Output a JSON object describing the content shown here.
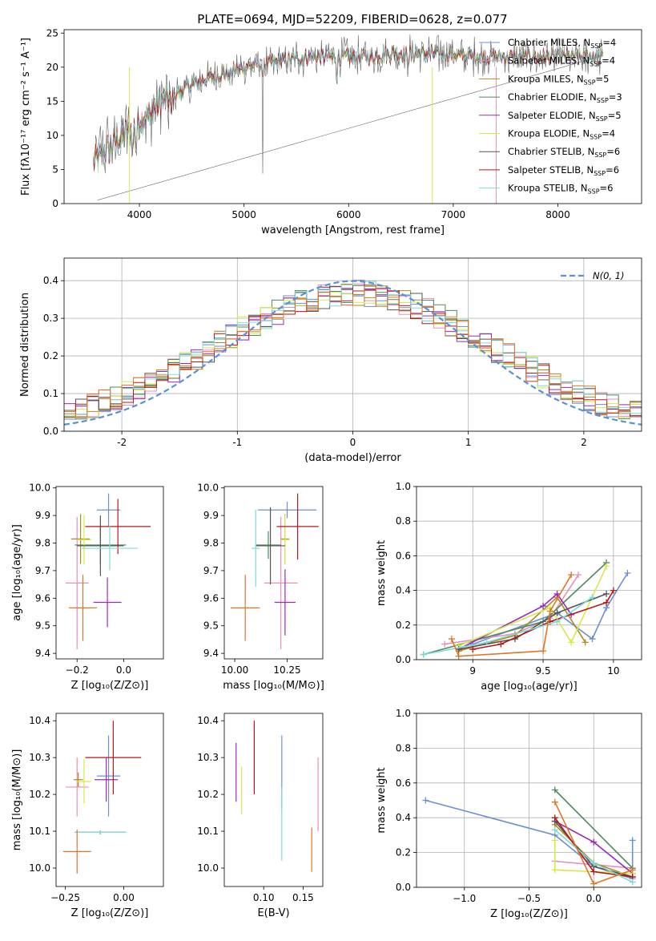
{
  "title": "PLATE=0694, MJD=52209, FIBERID=0628, z=0.077",
  "colors": {
    "Chabrier MILES": "#6b8fd6",
    "Salpeter MILES": "#e68fbf",
    "Kroupa MILES": "#b08a1e",
    "Chabrier ELODIE": "#4d8a5c",
    "Salpeter ELODIE": "#9b2ab8",
    "Kroupa ELODIE": "#d6e84a",
    "Chabrier STELIB": "#555555",
    "Salpeter STELIB": "#b51818",
    "Kroupa STELIB": "#7fd8d8",
    "orange": "#e0752a",
    "normal": "#5b8fd6"
  },
  "chart_data": [
    {
      "id": "spectrum",
      "type": "line",
      "title": "PLATE=0694, MJD=52209, FIBERID=0628, z=0.077",
      "xlabel": "wavelength [Angstrom, rest frame]",
      "ylabel": "Flux [fλ10⁻¹⁷ erg cm⁻² s⁻¹ A⁻¹]",
      "xlim": [
        3280,
        8800
      ],
      "ylim": [
        0,
        25.5
      ],
      "xticks": [
        4000,
        5000,
        6000,
        7000,
        8000
      ],
      "yticks": [
        0,
        5,
        10,
        15,
        20,
        25
      ],
      "legend_position": "upper-right",
      "series": [
        {
          "name": "Chabrier MILES, N_SSP=4",
          "label": "Chabrier MILES, N",
          "sub": "SSP",
          "eq": "=4",
          "key": "Chabrier MILES"
        },
        {
          "name": "Salpeter MILES, N_SSP=4",
          "label": "Salpeter MILES, N",
          "sub": "SSP",
          "eq": "=4",
          "key": "Salpeter MILES"
        },
        {
          "name": "Kroupa MILES, N_SSP=5",
          "label": "Kroupa MILES, N",
          "sub": "SSP",
          "eq": "=5",
          "key": "Kroupa MILES"
        },
        {
          "name": "Chabrier ELODIE, N_SSP=3",
          "label": "Chabrier ELODIE, N",
          "sub": "SSP",
          "eq": "=3",
          "key": "Chabrier ELODIE"
        },
        {
          "name": "Salpeter ELODIE, N_SSP=5",
          "label": "Salpeter ELODIE, N",
          "sub": "SSP",
          "eq": "=5",
          "key": "Salpeter ELODIE"
        },
        {
          "name": "Kroupa ELODIE, N_SSP=4",
          "label": "Kroupa ELODIE, N",
          "sub": "SSP",
          "eq": "=4",
          "key": "Kroupa ELODIE"
        },
        {
          "name": "Chabrier STELIB, N_SSP=6",
          "label": "Chabrier STELIB, N",
          "sub": "SSP",
          "eq": "=6",
          "key": "Chabrier STELIB"
        },
        {
          "name": "Salpeter STELIB, N_SSP=6",
          "label": "Salpeter STELIB, N",
          "sub": "SSP",
          "eq": "=6",
          "key": "Salpeter STELIB"
        },
        {
          "name": "Kroupa STELIB, N_SSP=6",
          "label": "Kroupa STELIB, N",
          "sub": "SSP",
          "eq": "=6",
          "key": "Kroupa STELIB"
        }
      ],
      "continuum": {
        "x": [
          3560,
          3700,
          3800,
          3900,
          4000,
          4100,
          4200,
          4300,
          4400,
          4500,
          4600,
          4800,
          5000,
          5200,
          5400,
          5600,
          5800,
          6000,
          6200,
          6400,
          6600,
          6800,
          7000,
          7200,
          7400,
          7600,
          7800,
          8000,
          8200,
          8400
        ],
        "y": [
          6,
          8,
          9.5,
          10.5,
          12,
          13.5,
          15,
          15.5,
          16.5,
          17.5,
          18,
          19,
          20,
          20.5,
          21,
          21.5,
          21.5,
          21.5,
          21.5,
          22,
          22,
          22,
          22,
          21.5,
          21.5,
          21.5,
          21.5,
          21.5,
          21.5,
          21.5
        ]
      }
    },
    {
      "id": "residuals",
      "type": "histogram",
      "xlabel": "(data-model)/error",
      "ylabel": "Normed distribution",
      "xlim": [
        -2.5,
        2.5
      ],
      "ylim": [
        0,
        0.46
      ],
      "xticks": [
        -2,
        -1,
        0,
        1,
        2
      ],
      "yticks": [
        0.0,
        0.1,
        0.2,
        0.3,
        0.4
      ],
      "grid": true,
      "legend_position": "upper-right",
      "legend_label": "N(0, 1)",
      "bin_width": 0.1,
      "reference": "normal distribution N(0,1), dashed"
    },
    {
      "id": "age-vs-Z",
      "type": "scatter",
      "xlabel": "Z [log₁₀(Z/Z⊙)]",
      "ylabel": "age [log₁₀(age/yr)]",
      "xlim": [
        -0.29,
        0.17
      ],
      "ylim": [
        9.38,
        10.005
      ],
      "xticks": [
        -0.2,
        0.0
      ],
      "xticklabels": [
        "−0.2",
        "0.0"
      ],
      "yticks": [
        9.4,
        9.5,
        9.6,
        9.7,
        9.8,
        9.9,
        10.0
      ],
      "points": [
        {
          "c": "Chabrier MILES",
          "x": -0.065,
          "xe": 0.05,
          "y": 9.92,
          "ye": 0.06
        },
        {
          "c": "Salpeter MILES",
          "x": -0.2,
          "xe": 0.05,
          "y": 9.655,
          "ye": 0.24
        },
        {
          "c": "Kroupa MILES",
          "x": -0.185,
          "xe": 0.04,
          "y": 9.815,
          "ye": 0.09
        },
        {
          "c": "Chabrier ELODIE",
          "x": -0.1,
          "xe": 0.11,
          "y": 9.793,
          "ye": 0.07
        },
        {
          "c": "Salpeter ELODIE",
          "x": -0.07,
          "xe": 0.06,
          "y": 9.585,
          "ye": 0.09
        },
        {
          "c": "Kroupa ELODIE",
          "x": -0.17,
          "xe": 0.03,
          "y": 9.812,
          "ye": 0.09
        },
        {
          "c": "Chabrier STELIB",
          "x": -0.1,
          "xe": 0.1,
          "y": 9.79,
          "ye": 0.11
        },
        {
          "c": "Salpeter STELIB",
          "x": -0.025,
          "xe": 0.14,
          "y": 9.86,
          "ye": 0.1
        },
        {
          "c": "Kroupa STELIB",
          "x": -0.06,
          "xe": 0.12,
          "y": 9.781,
          "ye": 0.08
        },
        {
          "c": "orange",
          "x": -0.175,
          "xe": 0.06,
          "y": 9.565,
          "ye": 0.12
        }
      ]
    },
    {
      "id": "age-vs-mass",
      "type": "scatter",
      "xlabel": "mass [log₁₀(M/M⊙)]",
      "ylabel": "",
      "xlim": [
        9.95,
        10.42
      ],
      "ylim": [
        9.38,
        10.005
      ],
      "xticks": [
        10.0,
        10.25
      ],
      "xticklabels": [
        "10.00",
        "10.25"
      ],
      "yticks": [
        9.4,
        9.5,
        9.6,
        9.7,
        9.8,
        9.9,
        10.0
      ],
      "points": [
        {
          "c": "Chabrier MILES",
          "x": 10.25,
          "xe": 0.14,
          "y": 9.92,
          "ye": 0.03
        },
        {
          "c": "Salpeter MILES",
          "x": 10.22,
          "xe": 0.08,
          "y": 9.655,
          "ye": 0.24
        },
        {
          "c": "Kroupa MILES",
          "x": 10.24,
          "xe": 0.02,
          "y": 9.815,
          "ye": 0.09
        },
        {
          "c": "Chabrier ELODIE",
          "x": 10.16,
          "xe": 0.06,
          "y": 9.793,
          "ye": 0.05
        },
        {
          "c": "Salpeter ELODIE",
          "x": 10.24,
          "xe": 0.05,
          "y": 9.585,
          "ye": 0.12
        },
        {
          "c": "Kroupa ELODIE",
          "x": 10.24,
          "xe": 0.02,
          "y": 9.812,
          "ye": 0.09
        },
        {
          "c": "Chabrier STELIB",
          "x": 10.17,
          "xe": 0.07,
          "y": 9.79,
          "ye": 0.14
        },
        {
          "c": "Salpeter STELIB",
          "x": 10.3,
          "xe": 0.1,
          "y": 9.86,
          "ye": 0.12
        },
        {
          "c": "Kroupa STELIB",
          "x": 10.1,
          "xe": 0.02,
          "y": 9.781,
          "ye": 0.14
        },
        {
          "c": "orange",
          "x": 10.05,
          "xe": 0.07,
          "y": 9.565,
          "ye": 0.12
        }
      ]
    },
    {
      "id": "weight-vs-age",
      "type": "line",
      "xlabel": "age [log₁₀(age/yr)]",
      "ylabel": "mass weight",
      "xlim": [
        8.6,
        10.2
      ],
      "ylim": [
        0,
        1.0
      ],
      "xticks": [
        9.0,
        9.5,
        10.0
      ],
      "yticks": [
        0.0,
        0.2,
        0.4,
        0.6,
        0.8,
        1.0
      ],
      "grid": true,
      "series": [
        {
          "c": "Chabrier MILES",
          "x": [
            9.0,
            9.6,
            9.85,
            9.95,
            10.1
          ],
          "y": [
            0.09,
            0.27,
            0.12,
            0.3,
            0.5
          ]
        },
        {
          "c": "Salpeter MILES",
          "x": [
            8.8,
            9.3,
            9.55,
            9.75
          ],
          "y": [
            0.09,
            0.15,
            0.24,
            0.49
          ]
        },
        {
          "c": "Kroupa MILES",
          "x": [
            8.9,
            9.3,
            9.6,
            9.8
          ],
          "y": [
            0.05,
            0.14,
            0.36,
            0.1
          ]
        },
        {
          "c": "Chabrier ELODIE",
          "x": [
            8.65,
            9.5,
            9.95
          ],
          "y": [
            0.03,
            0.22,
            0.56
          ]
        },
        {
          "c": "Salpeter ELODIE",
          "x": [
            8.9,
            9.5,
            9.6,
            9.7
          ],
          "y": [
            0.06,
            0.31,
            0.38,
            0.26
          ]
        },
        {
          "c": "Kroupa ELODIE",
          "x": [
            8.9,
            9.55,
            9.7,
            9.95
          ],
          "y": [
            0.08,
            0.3,
            0.1,
            0.54
          ]
        },
        {
          "c": "Chabrier STELIB",
          "x": [
            8.9,
            9.3,
            9.6,
            9.95
          ],
          "y": [
            0.06,
            0.12,
            0.27,
            0.38
          ]
        },
        {
          "c": "Salpeter STELIB",
          "x": [
            9.0,
            9.2,
            9.55,
            9.95,
            10.0
          ],
          "y": [
            0.06,
            0.09,
            0.22,
            0.33,
            0.4
          ]
        },
        {
          "c": "Kroupa STELIB",
          "x": [
            8.65,
            9.1,
            9.6,
            9.85
          ],
          "y": [
            0.03,
            0.1,
            0.22,
            0.36
          ]
        },
        {
          "c": "orange",
          "x": [
            8.85,
            8.9,
            9.5,
            9.55,
            9.7
          ],
          "y": [
            0.12,
            0.02,
            0.05,
            0.28,
            0.49
          ]
        }
      ]
    },
    {
      "id": "mass-vs-Z",
      "type": "scatter",
      "xlabel": "Z [log₁₀(Z/Z⊙)]",
      "ylabel": "mass [log₁₀(M/M⊙)]",
      "xlim": [
        -0.29,
        0.17
      ],
      "ylim": [
        9.95,
        10.42
      ],
      "xticks": [
        -0.25,
        0.0
      ],
      "xticklabels": [
        "−0.25",
        "0.00"
      ],
      "yticks": [
        10.0,
        10.1,
        10.2,
        10.3,
        10.4
      ],
      "points": [
        {
          "c": "Chabrier MILES",
          "x": -0.065,
          "xe": 0.05,
          "y": 10.25,
          "ye": 0.11
        },
        {
          "c": "Salpeter MILES",
          "x": -0.2,
          "xe": 0.05,
          "y": 10.22,
          "ye": 0.08
        },
        {
          "c": "Kroupa MILES",
          "x": -0.195,
          "xe": 0.02,
          "y": 10.24,
          "ye": 0.02
        },
        {
          "c": "Chabrier ELODIE",
          "x": -0.1,
          "xe": 0.11,
          "y": 10.097,
          "ye": 0.005
        },
        {
          "c": "Salpeter ELODIE",
          "x": -0.075,
          "xe": 0.05,
          "y": 10.24,
          "ye": 0.06
        },
        {
          "c": "Kroupa ELODIE",
          "x": -0.17,
          "xe": 0.03,
          "y": 10.235,
          "ye": 0.06
        },
        {
          "c": "Chabrier STELIB",
          "x": -0.1,
          "xe": 0.11,
          "y": 10.097,
          "ye": 0.005
        },
        {
          "c": "Salpeter STELIB",
          "x": -0.045,
          "xe": 0.12,
          "y": 10.3,
          "ye": 0.1
        },
        {
          "c": "Kroupa STELIB",
          "x": -0.1,
          "xe": 0.11,
          "y": 10.097,
          "ye": 0.005
        },
        {
          "c": "orange",
          "x": -0.2,
          "xe": 0.06,
          "y": 10.045,
          "ye": 0.06
        }
      ]
    },
    {
      "id": "mass-vs-ebv",
      "type": "scatter",
      "xlabel": "E(B-V)",
      "ylabel": "",
      "xlim": [
        0.05,
        0.175
      ],
      "ylim": [
        9.95,
        10.42
      ],
      "xticks": [
        0.1,
        0.15
      ],
      "xticklabels": [
        "0.10",
        "0.15"
      ],
      "yticks": [
        10.0,
        10.1,
        10.2,
        10.3,
        10.4
      ],
      "points": [
        {
          "c": "Salpeter ELODIE",
          "x": 0.065,
          "y": 10.26,
          "ye": 0.08
        },
        {
          "c": "Kroupa ELODIE",
          "x": 0.072,
          "y": 10.21,
          "ye": 0.065
        },
        {
          "c": "Salpeter STELIB",
          "x": 0.088,
          "y": 10.3,
          "ye": 0.1
        },
        {
          "c": "Chabrier MILES",
          "x": 0.123,
          "y": 10.26,
          "ye": 0.1
        },
        {
          "c": "Kroupa STELIB",
          "x": 0.123,
          "y": 10.12,
          "ye": 0.1
        },
        {
          "c": "orange",
          "x": 0.161,
          "y": 10.05,
          "ye": 0.06
        },
        {
          "c": "Salpeter MILES",
          "x": 0.169,
          "y": 10.2,
          "ye": 0.1
        }
      ]
    },
    {
      "id": "weight-vs-Z",
      "type": "line",
      "xlabel": "Z [log₁₀(Z/Z⊙)]",
      "ylabel": "mass weight",
      "xlim": [
        -1.37,
        0.37
      ],
      "ylim": [
        0,
        1.0
      ],
      "xticks": [
        -1.0,
        -0.5,
        0.0
      ],
      "xticklabels": [
        "−1.0",
        "−0.5",
        "0.0"
      ],
      "yticks": [
        0.0,
        0.2,
        0.4,
        0.6,
        0.8,
        1.0
      ],
      "grid": true,
      "series": [
        {
          "c": "Chabrier MILES",
          "x": [
            -1.3,
            -0.3,
            0.0,
            0.3,
            0.3
          ],
          "y": [
            0.5,
            0.3,
            0.12,
            0.05,
            0.27
          ]
        },
        {
          "c": "Salpeter MILES",
          "x": [
            -0.3,
            0.0,
            0.3
          ],
          "y": [
            0.15,
            0.13,
            0.11
          ]
        },
        {
          "c": "Kroupa MILES",
          "x": [
            -0.3,
            0.0,
            0.3
          ],
          "y": [
            0.36,
            0.14,
            0.06
          ]
        },
        {
          "c": "Chabrier ELODIE",
          "x": [
            -0.3,
            0.3
          ],
          "y": [
            0.56,
            0.11
          ]
        },
        {
          "c": "Salpeter ELODIE",
          "x": [
            -0.3,
            0.0,
            0.3
          ],
          "y": [
            0.38,
            0.26,
            0.08
          ]
        },
        {
          "c": "Kroupa ELODIE",
          "x": [
            -0.3,
            -0.3,
            0.3
          ],
          "y": [
            0.27,
            0.1,
            0.08
          ]
        },
        {
          "c": "Chabrier STELIB",
          "x": [
            -0.3,
            0.0,
            0.3
          ],
          "y": [
            0.38,
            0.12,
            0.06
          ]
        },
        {
          "c": "Salpeter STELIB",
          "x": [
            -0.3,
            0.0,
            0.3
          ],
          "y": [
            0.4,
            0.09,
            0.06
          ]
        },
        {
          "c": "Kroupa STELIB",
          "x": [
            -0.3,
            0.0,
            0.3
          ],
          "y": [
            0.33,
            0.14,
            0.03
          ]
        },
        {
          "c": "orange",
          "x": [
            -0.3,
            0.0,
            0.3
          ],
          "y": [
            0.49,
            0.02,
            0.1
          ]
        }
      ]
    }
  ]
}
